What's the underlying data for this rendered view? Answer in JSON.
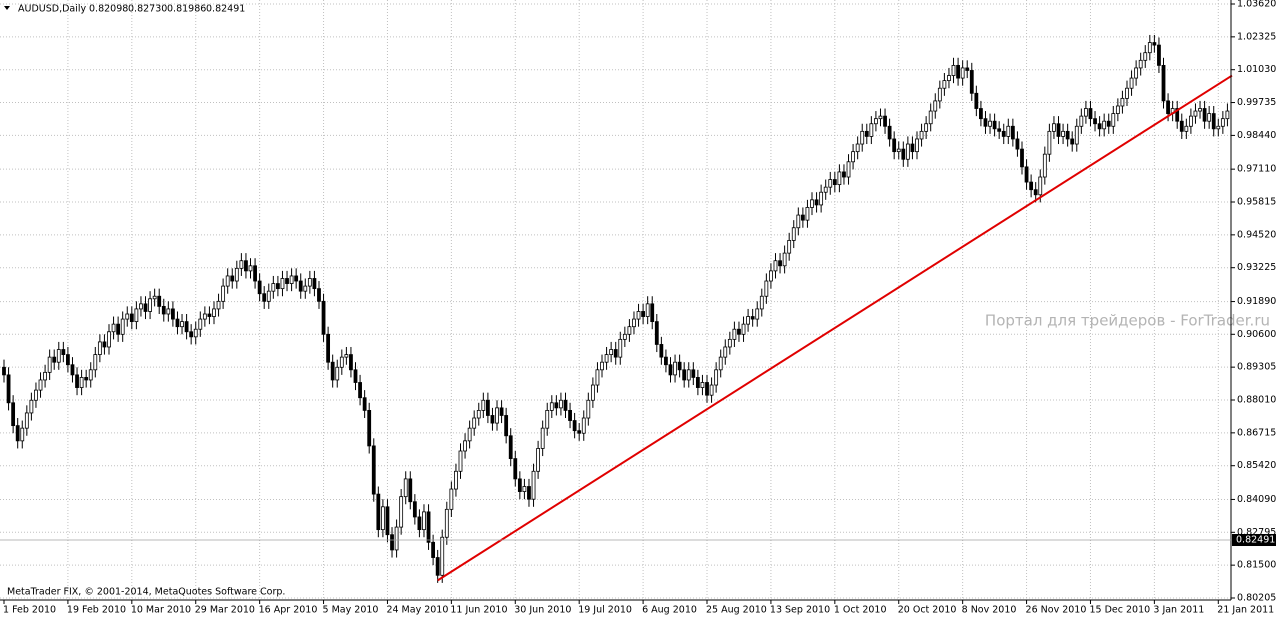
{
  "chart_data": {
    "type": "candlestick",
    "title": "AUDUSD,Daily",
    "quote": {
      "values": [
        0.82098,
        0.8273,
        0.81986,
        0.82491
      ],
      "value_labels": [
        "0.82098",
        "0.82730",
        "0.81986",
        "0.82491"
      ]
    },
    "footer": "MetaTrader FIX, © 2001-2014, MetaQuotes Software Corp.",
    "watermark": "Портал для трейдеров - ForTrader.ru",
    "ylim": [
      0.80205,
      1.0362
    ],
    "yticks": [
      {
        "value": 1.0362,
        "label": "1.03620"
      },
      1.02325,
      {
        "value": 1.0103,
        "label": "1.01030"
      },
      0.99735,
      {
        "value": 0.9844,
        "label": "0.98440"
      },
      {
        "value": 0.9711,
        "label": "0.97110"
      },
      0.95815,
      {
        "value": 0.9452,
        "label": "0.94520"
      },
      0.93225,
      {
        "value": 0.9189,
        "label": "0.91890"
      },
      {
        "value": 0.906,
        "label": "0.90600"
      },
      0.89305,
      {
        "value": 0.8801,
        "label": "0.88010"
      },
      0.86715,
      {
        "value": 0.8542,
        "label": "0.85420"
      },
      {
        "value": 0.8409,
        "label": "0.84090"
      },
      0.82795,
      {
        "value": 0.815,
        "label": "0.81500"
      },
      0.80205
    ],
    "grid": true,
    "grid_color": "#c0c0c0",
    "up_color": "#ffffff",
    "down_color": "#000000",
    "line_color": "#000000",
    "categories": [
      "1 Feb 2010",
      null,
      null,
      null,
      null,
      null,
      null,
      null,
      null,
      null,
      null,
      null,
      null,
      null,
      "19 Feb 2010",
      null,
      null,
      null,
      null,
      null,
      null,
      null,
      null,
      null,
      null,
      null,
      null,
      null,
      "10 Mar 2010",
      null,
      null,
      null,
      null,
      null,
      null,
      null,
      null,
      null,
      null,
      null,
      null,
      null,
      "29 Mar 2010",
      null,
      null,
      null,
      null,
      null,
      null,
      null,
      null,
      null,
      null,
      null,
      null,
      null,
      "16 Apr 2010",
      null,
      null,
      null,
      null,
      null,
      null,
      null,
      null,
      null,
      null,
      null,
      null,
      null,
      "5 May 2010",
      null,
      null,
      null,
      null,
      null,
      null,
      null,
      null,
      null,
      null,
      null,
      null,
      null,
      "24 May 2010",
      null,
      null,
      null,
      null,
      null,
      null,
      null,
      null,
      null,
      null,
      null,
      null,
      null,
      "11 Jun 2010",
      null,
      null,
      null,
      null,
      null,
      null,
      null,
      null,
      null,
      null,
      null,
      null,
      null,
      "30 Jun 2010",
      null,
      null,
      null,
      null,
      null,
      null,
      null,
      null,
      null,
      null,
      null,
      null,
      null,
      "19 Jul 2010",
      null,
      null,
      null,
      null,
      null,
      null,
      null,
      null,
      null,
      null,
      null,
      null,
      null,
      "6 Aug 2010",
      null,
      null,
      null,
      null,
      null,
      null,
      null,
      null,
      null,
      null,
      null,
      null,
      null,
      "25 Aug 2010",
      null,
      null,
      null,
      null,
      null,
      null,
      null,
      null,
      null,
      null,
      null,
      null,
      null,
      "13 Sep 2010",
      null,
      null,
      null,
      null,
      null,
      null,
      null,
      null,
      null,
      null,
      null,
      null,
      null,
      "1 Oct 2010",
      null,
      null,
      null,
      null,
      null,
      null,
      null,
      null,
      null,
      null,
      null,
      null,
      null,
      "20 Oct 2010",
      null,
      null,
      null,
      null,
      null,
      null,
      null,
      null,
      null,
      null,
      null,
      null,
      null,
      "8 Nov 2010",
      null,
      null,
      null,
      null,
      null,
      null,
      null,
      null,
      null,
      null,
      null,
      null,
      null,
      "26 Nov 2010",
      null,
      null,
      null,
      null,
      null,
      null,
      null,
      null,
      null,
      null,
      null,
      null,
      null,
      "15 Dec 2010",
      null,
      null,
      null,
      null,
      null,
      null,
      null,
      null,
      null,
      null,
      null,
      null,
      null,
      "3 Jan 2011",
      null,
      null,
      null,
      null,
      null,
      null,
      null,
      null,
      null,
      null,
      null,
      null,
      null,
      "21 Jan 2011",
      null,
      null
    ],
    "open": [
      0.893,
      0.89,
      0.879,
      0.87,
      0.864,
      0.869,
      0.875,
      0.88,
      0.884,
      0.888,
      0.891,
      0.897,
      0.895,
      0.9,
      0.898,
      0.894,
      0.89,
      0.885,
      0.889,
      0.888,
      0.892,
      0.898,
      0.903,
      0.901,
      0.907,
      0.91,
      0.906,
      0.912,
      0.914,
      0.911,
      0.916,
      0.918,
      0.915,
      0.92,
      0.921,
      0.917,
      0.914,
      0.916,
      0.912,
      0.909,
      0.911,
      0.907,
      0.905,
      0.908,
      0.912,
      0.914,
      0.913,
      0.916,
      0.919,
      0.925,
      0.929,
      0.927,
      0.932,
      0.935,
      0.931,
      0.933,
      0.927,
      0.922,
      0.919,
      0.923,
      0.926,
      0.924,
      0.928,
      0.926,
      0.929,
      0.927,
      0.923,
      0.925,
      0.928,
      0.924,
      0.919,
      0.906,
      0.895,
      0.888,
      0.893,
      0.897,
      0.898,
      0.892,
      0.887,
      0.881,
      0.876,
      0.862,
      0.843,
      0.829,
      0.838,
      0.827,
      0.821,
      0.83,
      0.842,
      0.849,
      0.84,
      0.834,
      0.829,
      0.836,
      0.824,
      0.818,
      0.811,
      0.826,
      0.837,
      0.845,
      0.852,
      0.86,
      0.864,
      0.869,
      0.873,
      0.876,
      0.88,
      0.874,
      0.871,
      0.877,
      0.874,
      0.866,
      0.857,
      0.849,
      0.844,
      0.846,
      0.841,
      0.852,
      0.861,
      0.869,
      0.876,
      0.879,
      0.877,
      0.88,
      0.876,
      0.872,
      0.868,
      0.867,
      0.873,
      0.88,
      0.886,
      0.892,
      0.895,
      0.898,
      0.9,
      0.897,
      0.904,
      0.906,
      0.909,
      0.912,
      0.915,
      0.913,
      0.918,
      0.911,
      0.902,
      0.897,
      0.894,
      0.89,
      0.895,
      0.892,
      0.888,
      0.892,
      0.889,
      0.885,
      0.887,
      0.882,
      0.886,
      0.892,
      0.897,
      0.901,
      0.904,
      0.908,
      0.906,
      0.91,
      0.913,
      0.912,
      0.916,
      0.921,
      0.927,
      0.931,
      0.935,
      0.933,
      0.938,
      0.943,
      0.948,
      0.953,
      0.951,
      0.956,
      0.959,
      0.957,
      0.962,
      0.964,
      0.967,
      0.965,
      0.97,
      0.968,
      0.974,
      0.978,
      0.981,
      0.986,
      0.984,
      0.989,
      0.991,
      0.992,
      0.988,
      0.983,
      0.978,
      0.979,
      0.975,
      0.981,
      0.978,
      0.983,
      0.986,
      0.989,
      0.994,
      0.998,
      1.003,
      1.006,
      1.008,
      1.012,
      1.007,
      1.011,
      1.01,
      1.001,
      0.995,
      0.991,
      0.988,
      0.99,
      0.987,
      0.986,
      0.984,
      0.988,
      0.983,
      0.979,
      0.972,
      0.966,
      0.963,
      0.961,
      0.968,
      0.977,
      0.986,
      0.989,
      0.984,
      0.986,
      0.983,
      0.981,
      0.988,
      0.992,
      0.995,
      0.991,
      0.989,
      0.987,
      0.99,
      0.988,
      0.993,
      0.996,
      0.999,
      1.003,
      1.007,
      1.011,
      1.014,
      1.017,
      1.021,
      1.02,
      1.012,
      0.998,
      0.993,
      0.995,
      0.99,
      0.986,
      0.988,
      0.992,
      0.994,
      0.995,
      0.99,
      0.993,
      0.987,
      0.988,
      0.991
    ],
    "high": [
      0.896,
      0.893,
      0.882,
      0.873,
      0.872,
      0.878,
      0.883,
      0.887,
      0.891,
      0.894,
      0.9,
      0.9,
      0.903,
      0.903,
      0.901,
      0.897,
      0.893,
      0.892,
      0.892,
      0.895,
      0.901,
      0.906,
      0.906,
      0.91,
      0.913,
      0.913,
      0.915,
      0.917,
      0.917,
      0.919,
      0.921,
      0.921,
      0.923,
      0.924,
      0.924,
      0.92,
      0.919,
      0.919,
      0.915,
      0.914,
      0.914,
      0.91,
      0.911,
      0.915,
      0.917,
      0.917,
      0.919,
      0.922,
      0.928,
      0.932,
      0.932,
      0.935,
      0.938,
      0.938,
      0.936,
      0.936,
      0.93,
      0.925,
      0.926,
      0.929,
      0.929,
      0.931,
      0.931,
      0.932,
      0.932,
      0.93,
      0.928,
      0.931,
      0.931,
      0.927,
      0.922,
      0.909,
      0.898,
      0.896,
      0.9,
      0.901,
      0.901,
      0.895,
      0.89,
      0.884,
      0.879,
      0.865,
      0.846,
      0.841,
      0.841,
      0.83,
      0.833,
      0.845,
      0.852,
      0.852,
      0.843,
      0.837,
      0.839,
      0.839,
      0.827,
      0.821,
      0.829,
      0.84,
      0.848,
      0.855,
      0.863,
      0.867,
      0.872,
      0.876,
      0.879,
      0.883,
      0.883,
      0.877,
      0.88,
      0.88,
      0.877,
      0.869,
      0.86,
      0.852,
      0.849,
      0.849,
      0.855,
      0.864,
      0.872,
      0.879,
      0.882,
      0.882,
      0.883,
      0.883,
      0.879,
      0.875,
      0.871,
      0.876,
      0.883,
      0.889,
      0.895,
      0.898,
      0.901,
      0.903,
      0.903,
      0.907,
      0.909,
      0.912,
      0.915,
      0.918,
      0.918,
      0.921,
      0.921,
      0.914,
      0.905,
      0.9,
      0.897,
      0.898,
      0.898,
      0.895,
      0.895,
      0.895,
      0.892,
      0.89,
      0.89,
      0.889,
      0.895,
      0.9,
      0.904,
      0.907,
      0.911,
      0.911,
      0.913,
      0.916,
      0.916,
      0.919,
      0.924,
      0.93,
      0.934,
      0.938,
      0.938,
      0.941,
      0.946,
      0.951,
      0.956,
      0.956,
      0.959,
      0.962,
      0.962,
      0.965,
      0.967,
      0.97,
      0.97,
      0.973,
      0.973,
      0.977,
      0.981,
      0.984,
      0.989,
      0.989,
      0.992,
      0.994,
      0.995,
      0.995,
      0.991,
      0.986,
      0.982,
      0.982,
      0.984,
      0.984,
      0.986,
      0.989,
      0.992,
      0.997,
      1.001,
      1.006,
      1.009,
      1.011,
      1.015,
      1.015,
      1.014,
      1.014,
      1.013,
      1.004,
      0.998,
      0.994,
      0.993,
      0.993,
      0.99,
      0.989,
      0.991,
      0.991,
      0.986,
      0.982,
      0.975,
      0.969,
      0.966,
      0.971,
      0.98,
      0.989,
      0.992,
      0.992,
      0.989,
      0.989,
      0.986,
      0.991,
      0.995,
      0.998,
      0.998,
      0.994,
      0.992,
      0.993,
      0.993,
      0.996,
      0.999,
      1.002,
      1.006,
      1.01,
      1.014,
      1.017,
      1.02,
      1.024,
      1.024,
      1.023,
      1.015,
      1.001,
      0.998,
      0.998,
      0.993,
      0.991,
      0.995,
      0.997,
      0.998,
      0.998,
      0.996,
      0.996,
      0.991,
      0.994,
      0.997
    ],
    "low": [
      0.887,
      0.876,
      0.867,
      0.861,
      0.861,
      0.866,
      0.872,
      0.877,
      0.881,
      0.885,
      0.888,
      0.892,
      0.892,
      0.895,
      0.891,
      0.887,
      0.882,
      0.882,
      0.885,
      0.885,
      0.889,
      0.895,
      0.898,
      0.898,
      0.904,
      0.903,
      0.903,
      0.909,
      0.908,
      0.908,
      0.913,
      0.912,
      0.912,
      0.917,
      0.914,
      0.911,
      0.911,
      0.909,
      0.906,
      0.906,
      0.904,
      0.902,
      0.902,
      0.905,
      0.909,
      0.91,
      0.91,
      0.913,
      0.916,
      0.922,
      0.924,
      0.924,
      0.929,
      0.928,
      0.928,
      0.924,
      0.919,
      0.916,
      0.916,
      0.92,
      0.921,
      0.921,
      0.923,
      0.923,
      0.924,
      0.92,
      0.92,
      0.922,
      0.921,
      0.916,
      0.903,
      0.892,
      0.885,
      0.885,
      0.89,
      0.894,
      0.889,
      0.884,
      0.878,
      0.873,
      0.859,
      0.84,
      0.826,
      0.826,
      0.824,
      0.818,
      0.818,
      0.827,
      0.839,
      0.837,
      0.831,
      0.826,
      0.826,
      0.821,
      0.815,
      0.808,
      0.808,
      0.823,
      0.834,
      0.842,
      0.849,
      0.857,
      0.861,
      0.866,
      0.87,
      0.873,
      0.871,
      0.868,
      0.868,
      0.871,
      0.863,
      0.854,
      0.846,
      0.841,
      0.841,
      0.838,
      0.838,
      0.849,
      0.858,
      0.866,
      0.873,
      0.874,
      0.874,
      0.873,
      0.869,
      0.865,
      0.864,
      0.864,
      0.87,
      0.877,
      0.883,
      0.889,
      0.892,
      0.895,
      0.894,
      0.894,
      0.901,
      0.903,
      0.906,
      0.909,
      0.91,
      0.91,
      0.908,
      0.899,
      0.894,
      0.891,
      0.887,
      0.887,
      0.889,
      0.885,
      0.885,
      0.886,
      0.882,
      0.882,
      0.879,
      0.879,
      0.883,
      0.889,
      0.894,
      0.898,
      0.901,
      0.903,
      0.903,
      0.907,
      0.909,
      0.909,
      0.913,
      0.918,
      0.924,
      0.928,
      0.93,
      0.93,
      0.935,
      0.94,
      0.945,
      0.948,
      0.948,
      0.953,
      0.954,
      0.954,
      0.959,
      0.961,
      0.962,
      0.962,
      0.965,
      0.965,
      0.971,
      0.975,
      0.978,
      0.981,
      0.981,
      0.986,
      0.988,
      0.985,
      0.98,
      0.975,
      0.975,
      0.972,
      0.972,
      0.975,
      0.975,
      0.98,
      0.983,
      0.986,
      0.991,
      0.995,
      1.0,
      1.003,
      1.005,
      1.004,
      1.004,
      1.007,
      0.998,
      0.992,
      0.988,
      0.985,
      0.985,
      0.984,
      0.983,
      0.981,
      0.981,
      0.98,
      0.976,
      0.969,
      0.963,
      0.96,
      0.958,
      0.958,
      0.965,
      0.974,
      0.983,
      0.981,
      0.981,
      0.98,
      0.978,
      0.978,
      0.985,
      0.989,
      0.988,
      0.986,
      0.984,
      0.984,
      0.985,
      0.985,
      0.99,
      0.993,
      0.996,
      1.0,
      1.004,
      1.008,
      1.011,
      1.014,
      1.017,
      1.009,
      0.995,
      0.99,
      0.99,
      0.987,
      0.983,
      0.983,
      0.985,
      0.989,
      0.991,
      0.987,
      0.987,
      0.984,
      0.984,
      0.985,
      0.988
    ],
    "close": [
      0.89,
      0.879,
      0.87,
      0.864,
      0.869,
      0.875,
      0.88,
      0.884,
      0.888,
      0.891,
      0.897,
      0.895,
      0.9,
      0.898,
      0.894,
      0.89,
      0.885,
      0.889,
      0.888,
      0.892,
      0.898,
      0.903,
      0.901,
      0.907,
      0.91,
      0.906,
      0.912,
      0.914,
      0.911,
      0.916,
      0.918,
      0.915,
      0.92,
      0.921,
      0.917,
      0.914,
      0.916,
      0.912,
      0.909,
      0.911,
      0.907,
      0.905,
      0.908,
      0.912,
      0.914,
      0.913,
      0.916,
      0.919,
      0.925,
      0.929,
      0.927,
      0.932,
      0.935,
      0.931,
      0.933,
      0.927,
      0.922,
      0.919,
      0.923,
      0.926,
      0.924,
      0.928,
      0.926,
      0.929,
      0.927,
      0.923,
      0.925,
      0.928,
      0.924,
      0.919,
      0.906,
      0.895,
      0.888,
      0.893,
      0.897,
      0.898,
      0.892,
      0.887,
      0.881,
      0.876,
      0.862,
      0.843,
      0.829,
      0.838,
      0.827,
      0.821,
      0.83,
      0.842,
      0.849,
      0.84,
      0.834,
      0.829,
      0.836,
      0.824,
      0.818,
      0.811,
      0.826,
      0.837,
      0.845,
      0.852,
      0.86,
      0.864,
      0.869,
      0.873,
      0.876,
      0.88,
      0.874,
      0.871,
      0.877,
      0.874,
      0.866,
      0.857,
      0.849,
      0.844,
      0.846,
      0.841,
      0.852,
      0.861,
      0.869,
      0.876,
      0.879,
      0.877,
      0.88,
      0.876,
      0.872,
      0.868,
      0.867,
      0.873,
      0.88,
      0.886,
      0.892,
      0.895,
      0.898,
      0.9,
      0.897,
      0.904,
      0.906,
      0.909,
      0.912,
      0.915,
      0.913,
      0.918,
      0.911,
      0.902,
      0.897,
      0.894,
      0.89,
      0.895,
      0.892,
      0.888,
      0.892,
      0.889,
      0.885,
      0.887,
      0.882,
      0.886,
      0.892,
      0.897,
      0.901,
      0.904,
      0.908,
      0.906,
      0.91,
      0.913,
      0.912,
      0.916,
      0.921,
      0.927,
      0.931,
      0.935,
      0.933,
      0.938,
      0.943,
      0.948,
      0.953,
      0.951,
      0.956,
      0.959,
      0.957,
      0.962,
      0.964,
      0.967,
      0.965,
      0.97,
      0.968,
      0.974,
      0.978,
      0.981,
      0.986,
      0.984,
      0.989,
      0.991,
      0.992,
      0.988,
      0.983,
      0.978,
      0.979,
      0.975,
      0.981,
      0.978,
      0.983,
      0.986,
      0.989,
      0.994,
      0.998,
      1.003,
      1.006,
      1.008,
      1.012,
      1.007,
      1.011,
      1.01,
      1.001,
      0.995,
      0.991,
      0.988,
      0.99,
      0.987,
      0.986,
      0.984,
      0.988,
      0.983,
      0.979,
      0.972,
      0.966,
      0.963,
      0.961,
      0.968,
      0.977,
      0.986,
      0.989,
      0.984,
      0.986,
      0.983,
      0.981,
      0.988,
      0.992,
      0.995,
      0.991,
      0.989,
      0.987,
      0.99,
      0.988,
      0.993,
      0.996,
      0.999,
      1.003,
      1.007,
      1.011,
      1.014,
      1.017,
      1.021,
      1.02,
      1.012,
      0.998,
      0.993,
      0.995,
      0.99,
      0.986,
      0.988,
      0.992,
      0.994,
      0.995,
      0.99,
      0.993,
      0.987,
      0.988,
      0.991,
      0.994
    ],
    "trendline": {
      "color": "#e00000",
      "x": [
        95,
        269
      ],
      "y": [
        0.809,
        1.008
      ]
    }
  }
}
